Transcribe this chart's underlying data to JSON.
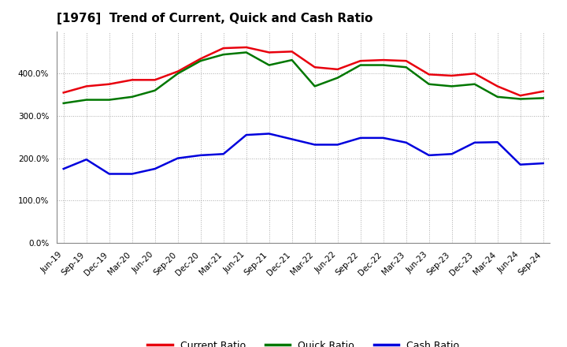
{
  "title": "[1976]  Trend of Current, Quick and Cash Ratio",
  "x_labels": [
    "Jun-19",
    "Sep-19",
    "Dec-19",
    "Mar-20",
    "Jun-20",
    "Sep-20",
    "Dec-20",
    "Mar-21",
    "Jun-21",
    "Sep-21",
    "Dec-21",
    "Mar-22",
    "Jun-22",
    "Sep-22",
    "Dec-22",
    "Mar-23",
    "Jun-23",
    "Sep-23",
    "Dec-23",
    "Mar-24",
    "Jun-24",
    "Sep-24"
  ],
  "current_ratio": [
    355,
    370,
    375,
    385,
    385,
    405,
    435,
    460,
    462,
    450,
    452,
    415,
    410,
    430,
    432,
    430,
    398,
    395,
    400,
    370,
    348,
    358
  ],
  "quick_ratio": [
    330,
    338,
    338,
    345,
    360,
    400,
    430,
    445,
    450,
    420,
    432,
    370,
    390,
    420,
    420,
    415,
    375,
    370,
    375,
    345,
    340,
    342
  ],
  "cash_ratio": [
    175,
    197,
    163,
    163,
    175,
    200,
    207,
    210,
    255,
    258,
    245,
    232,
    232,
    248,
    248,
    237,
    207,
    210,
    237,
    238,
    185,
    188
  ],
  "current_color": "#e8000d",
  "quick_color": "#007700",
  "cash_color": "#0000dd",
  "legend_labels": [
    "Current Ratio",
    "Quick Ratio",
    "Cash Ratio"
  ],
  "ylim": [
    0,
    500
  ],
  "yticks": [
    0,
    100,
    200,
    300,
    400
  ],
  "ytick_labels": [
    "0.0%",
    "100.0%",
    "200.0%",
    "300.0%",
    "400.0%"
  ],
  "background_color": "#ffffff",
  "plot_bg_color": "#ffffff",
  "grid_color": "#aaaaaa",
  "title_fontsize": 11,
  "tick_fontsize": 7.5,
  "legend_fontsize": 9,
  "linewidth": 1.8
}
